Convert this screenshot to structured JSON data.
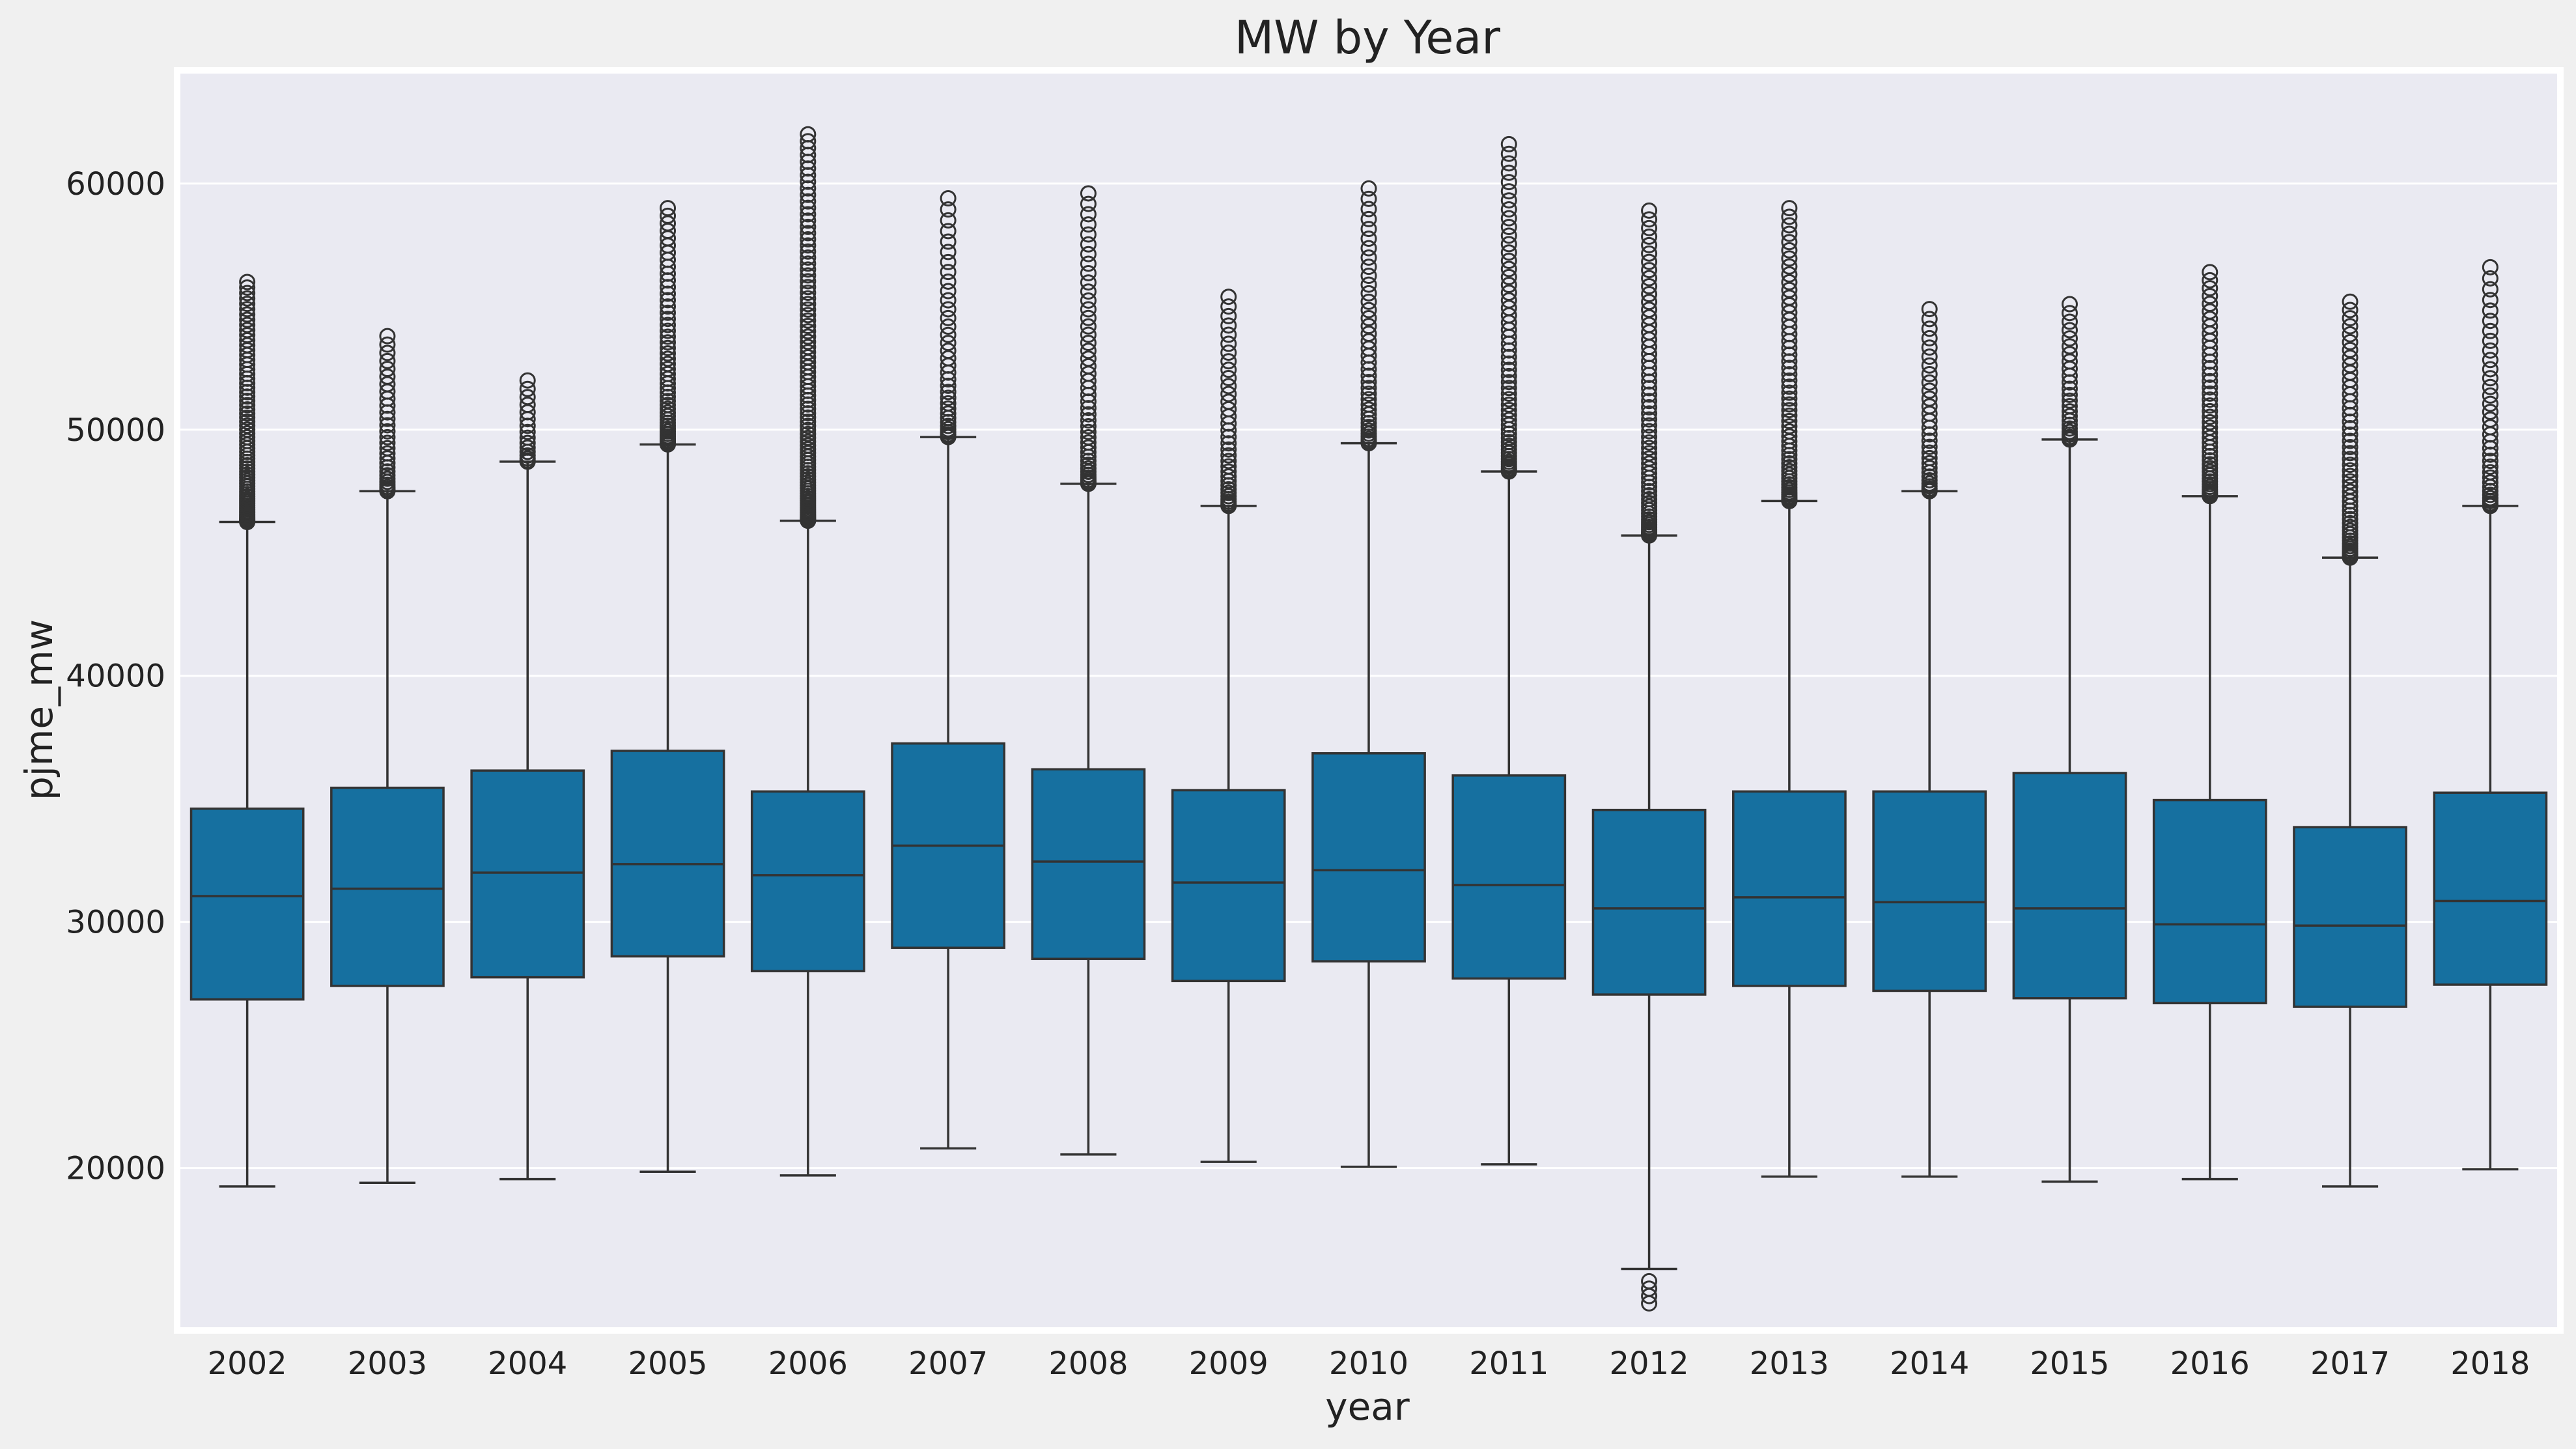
{
  "chart_data": {
    "type": "box",
    "title": "MW by Year",
    "xlabel": "year",
    "ylabel": "pjme_mw",
    "ylim": [
      13400,
      64600
    ],
    "yticks": [
      20000,
      30000,
      40000,
      50000,
      60000
    ],
    "grid": true,
    "colors": {
      "box": "#1670a0",
      "line": "#333333",
      "plot_bg": "#eaeaf2",
      "figure_bg": "#f0f0f0",
      "grid": "#ffffff"
    },
    "categories": [
      "2002",
      "2003",
      "2004",
      "2005",
      "2006",
      "2007",
      "2008",
      "2009",
      "2010",
      "2011",
      "2012",
      "2013",
      "2014",
      "2015",
      "2016",
      "2017",
      "2018"
    ],
    "boxes": [
      {
        "year": "2002",
        "whisker_low": 19250,
        "q1": 26850,
        "median": 31050,
        "q3": 34600,
        "whisker_high": 46250,
        "outlier_low": [],
        "outlier_range": [
          46250,
          56000
        ],
        "outlier_count": 70
      },
      {
        "year": "2003",
        "whisker_low": 19400,
        "q1": 27400,
        "median": 31350,
        "q3": 35450,
        "whisker_high": 47500,
        "outlier_low": [],
        "outlier_range": [
          47500,
          53800
        ],
        "outlier_count": 30
      },
      {
        "year": "2004",
        "whisker_low": 19550,
        "q1": 27750,
        "median": 32000,
        "q3": 36150,
        "whisker_high": 48700,
        "outlier_low": [],
        "outlier_range": [
          48700,
          52000
        ],
        "outlier_count": 16
      },
      {
        "year": "2005",
        "whisker_low": 19850,
        "q1": 28600,
        "median": 32350,
        "q3": 36950,
        "whisker_high": 49400,
        "outlier_low": [],
        "outlier_range": [
          49400,
          59000
        ],
        "outlier_count": 50
      },
      {
        "year": "2006",
        "whisker_low": 19700,
        "q1": 28000,
        "median": 31900,
        "q3": 35300,
        "whisker_high": 46300,
        "outlier_low": [],
        "outlier_range": [
          46300,
          62000
        ],
        "outlier_count": 90
      },
      {
        "year": "2007",
        "whisker_low": 20800,
        "q1": 28950,
        "median": 33100,
        "q3": 37250,
        "whisker_high": 49700,
        "outlier_low": [],
        "outlier_range": [
          49700,
          59400
        ],
        "outlier_count": 35
      },
      {
        "year": "2008",
        "whisker_low": 20550,
        "q1": 28500,
        "median": 32450,
        "q3": 36200,
        "whisker_high": 47800,
        "outlier_low": [],
        "outlier_range": [
          47800,
          59600
        ],
        "outlier_count": 45
      },
      {
        "year": "2009",
        "whisker_low": 20250,
        "q1": 27600,
        "median": 31600,
        "q3": 35350,
        "whisker_high": 46900,
        "outlier_low": [],
        "outlier_range": [
          46900,
          55400
        ],
        "outlier_count": 35
      },
      {
        "year": "2010",
        "whisker_low": 20050,
        "q1": 28400,
        "median": 32100,
        "q3": 36850,
        "whisker_high": 49450,
        "outlier_low": [],
        "outlier_range": [
          49450,
          59800
        ],
        "outlier_count": 40
      },
      {
        "year": "2011",
        "whisker_low": 20150,
        "q1": 27700,
        "median": 31500,
        "q3": 35950,
        "whisker_high": 48300,
        "outlier_low": [],
        "outlier_range": [
          48300,
          61600
        ],
        "outlier_count": 55
      },
      {
        "year": "2012",
        "whisker_low": 15900,
        "q1": 27050,
        "median": 30550,
        "q3": 34550,
        "whisker_high": 45700,
        "outlier_low": [
          15400,
          15100,
          14800,
          14500
        ],
        "outlier_range": [
          45700,
          58900
        ],
        "outlier_count": 60
      },
      {
        "year": "2013",
        "whisker_low": 19650,
        "q1": 27400,
        "median": 31000,
        "q3": 35300,
        "whisker_high": 47100,
        "outlier_low": [],
        "outlier_range": [
          47100,
          59000
        ],
        "outlier_count": 55
      },
      {
        "year": "2014",
        "whisker_low": 19650,
        "q1": 27200,
        "median": 30800,
        "q3": 35300,
        "whisker_high": 47500,
        "outlier_low": [],
        "outlier_range": [
          47500,
          54900
        ],
        "outlier_count": 30
      },
      {
        "year": "2015",
        "whisker_low": 19450,
        "q1": 26900,
        "median": 30550,
        "q3": 36050,
        "whisker_high": 49600,
        "outlier_low": [],
        "outlier_range": [
          49600,
          55100
        ],
        "outlier_count": 25
      },
      {
        "year": "2016",
        "whisker_low": 19550,
        "q1": 26700,
        "median": 29900,
        "q3": 34950,
        "whisker_high": 47300,
        "outlier_low": [],
        "outlier_range": [
          47300,
          56400
        ],
        "outlier_count": 45
      },
      {
        "year": "2017",
        "whisker_low": 19250,
        "q1": 26550,
        "median": 29850,
        "q3": 33850,
        "whisker_high": 44800,
        "outlier_low": [],
        "outlier_range": [
          44800,
          55200
        ],
        "outlier_count": 50
      },
      {
        "year": "2018",
        "whisker_low": 19950,
        "q1": 27450,
        "median": 30850,
        "q3": 35250,
        "whisker_high": 46900,
        "outlier_low": [],
        "outlier_range": [
          46900,
          56600
        ],
        "outlier_count": 35
      }
    ]
  }
}
